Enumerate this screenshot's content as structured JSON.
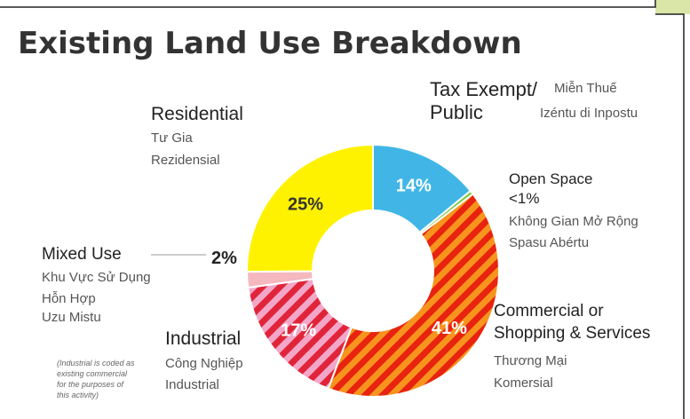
{
  "chart_data": {
    "type": "donut",
    "title": "Existing Land Use Breakdown",
    "categories": [
      {
        "name": [
          "Tax Exempt/",
          "Public"
        ],
        "translations": [
          "Miễn Thuế",
          "Izéntu di Inpostu"
        ]
      },
      {
        "name": [
          "Open Space"
        ],
        "translations": [
          "Không Gian Mở Rộng",
          "Spasu Abértu"
        ]
      },
      {
        "name": [
          "Commercial or",
          "Shopping & Services"
        ],
        "translations": [
          "Thương Mại",
          "Komersial"
        ]
      },
      {
        "name": [
          "Industrial"
        ],
        "translations": [
          "Công Nghiệp",
          "Industrial"
        ]
      },
      {
        "name": [
          "Mixed Use"
        ],
        "translations": [
          "Khu Vực Sử Dụng",
          "Hỗn Hợp",
          "Uzu Mistu"
        ]
      },
      {
        "name": [
          "Residential"
        ],
        "translations": [
          "Tư Gia",
          "Rezidensial"
        ]
      }
    ],
    "values": [
      14,
      0.5,
      41,
      17,
      2,
      25
    ],
    "value_labels": [
      "14%",
      "<1%",
      "41%",
      "17%",
      "2%",
      "25%"
    ],
    "colors": [
      "#41b6e6",
      "#7ac943",
      "#f7941d",
      "#f2a7c9",
      "#f6b8bf",
      "#fff200"
    ],
    "stripe_colors": [
      null,
      null,
      "#e8230f",
      "#e0253a",
      null,
      null
    ],
    "note": [
      "(Industrial is coded as",
      "existing commercial",
      "for the purposes of",
      "this activity)"
    ]
  }
}
